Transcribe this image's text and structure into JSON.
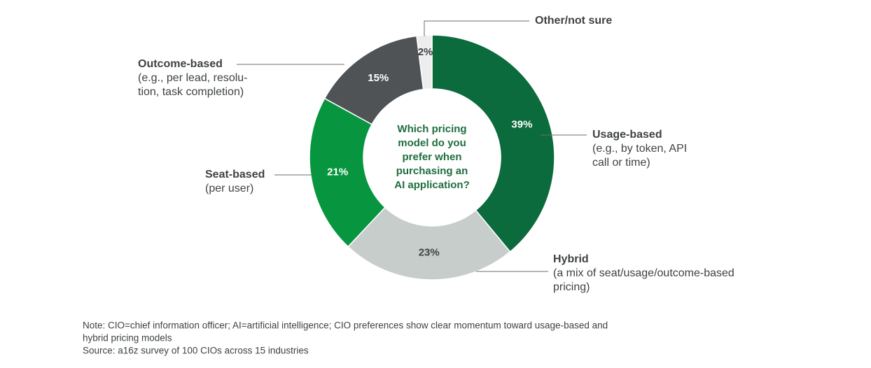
{
  "chart_data": {
    "type": "donut",
    "center_text": [
      "Which pricing",
      "model do you",
      "prefer when",
      "purchasing an",
      "AI application?"
    ],
    "categories": [
      "Usage-based",
      "Hybrid",
      "Seat-based",
      "Outcome-based",
      "Other/not sure"
    ],
    "descriptions": [
      [
        "(e.g., by token, API",
        "call or time)"
      ],
      [
        "(a mix of seat/usage/outcome-based",
        "pricing)"
      ],
      [
        "(per user)"
      ],
      [
        "(e.g., per lead, resolu-",
        "tion, task completion)"
      ],
      []
    ],
    "values": [
      39,
      23,
      21,
      15,
      2
    ],
    "value_labels": [
      "39%",
      "23%",
      "21%",
      "15%",
      "2%"
    ],
    "colors": [
      "#0b6b3c",
      "#c6cdca",
      "#07963f",
      "#4f5356",
      "#ededed"
    ],
    "notes": [
      "Note: CIO=chief information officer; AI=artificial intelligence; CIO preferences show clear momentum toward usage-based and",
      "hybrid pricing models",
      "Source: a16z survey of 100 CIOs across 15 industries"
    ]
  }
}
